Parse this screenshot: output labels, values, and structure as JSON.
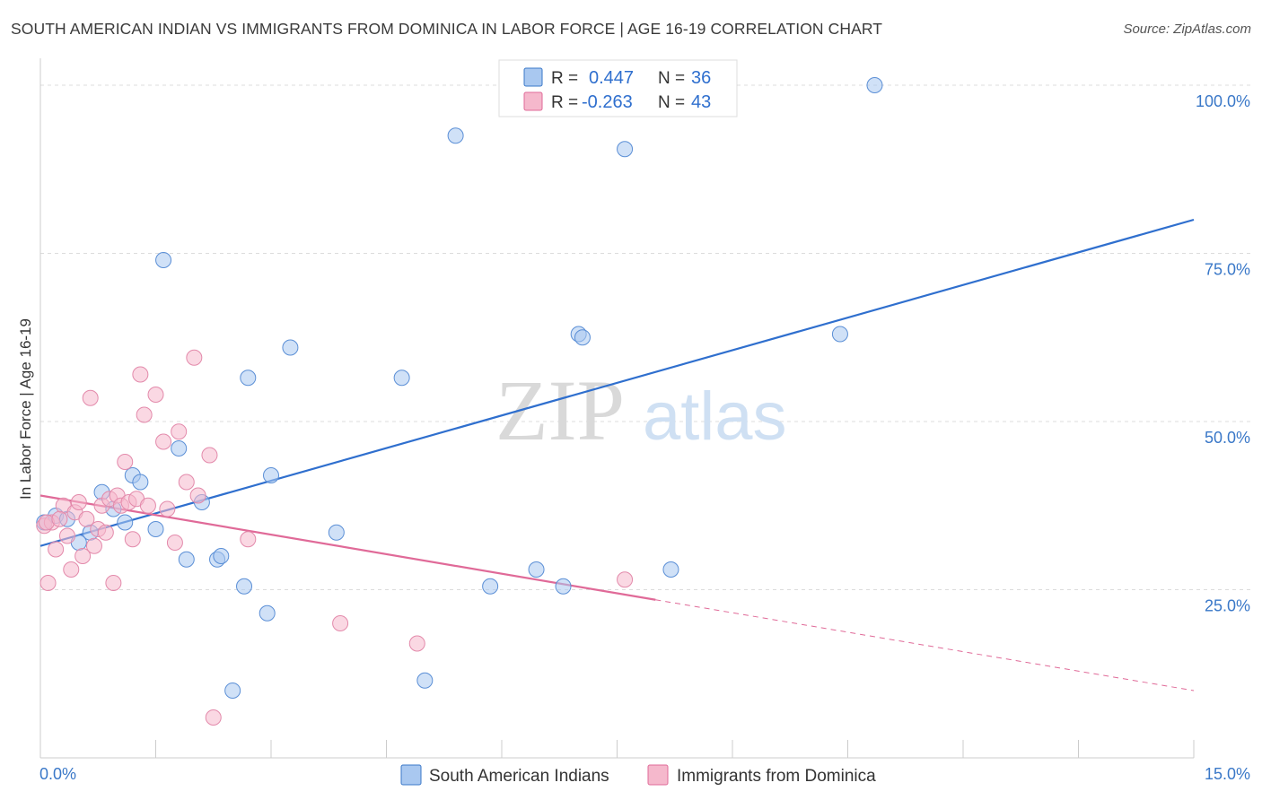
{
  "header": {
    "title": "SOUTH AMERICAN INDIAN VS IMMIGRANTS FROM DOMINICA IN LABOR FORCE | AGE 16-19 CORRELATION CHART",
    "source": "Source: ZipAtlas.com"
  },
  "watermark": {
    "zip": "ZIP",
    "atlas": "atlas"
  },
  "chart_data": {
    "type": "scatter",
    "title": "SOUTH AMERICAN INDIAN VS IMMIGRANTS FROM DOMINICA IN LABOR FORCE | AGE 16-19 CORRELATION CHART",
    "xlabel": "",
    "ylabel": "In Labor Force | Age 16-19",
    "xlim": [
      0,
      15
    ],
    "ylim": [
      0,
      102
    ],
    "x_tick_labels": [
      "0.0%",
      "15.0%"
    ],
    "y_ticks": [
      25,
      50,
      75,
      100
    ],
    "y_tick_labels": [
      "25.0%",
      "50.0%",
      "75.0%",
      "100.0%"
    ],
    "grid": true,
    "legend_position": "top-center",
    "colors": {
      "blue": "#3a78c8",
      "blue_fill": "#a9c8f0",
      "pink": "#e06a98",
      "pink_fill": "#f5b8cc"
    },
    "legend": [
      {
        "r_label": "R =",
        "r_value": "0.447",
        "n_label": "N =",
        "n_value": "36"
      },
      {
        "r_label": "R =",
        "r_value": "-0.263",
        "n_label": "N =",
        "n_value": "43"
      }
    ],
    "series": [
      {
        "name": "South American Indians",
        "color": "#3a78c8",
        "points": [
          [
            0.05,
            35
          ],
          [
            0.2,
            36
          ],
          [
            0.35,
            35.5
          ],
          [
            0.5,
            32
          ],
          [
            0.65,
            33.5
          ],
          [
            0.8,
            39.5
          ],
          [
            0.95,
            37
          ],
          [
            1.1,
            35
          ],
          [
            1.2,
            42
          ],
          [
            1.3,
            41
          ],
          [
            1.5,
            34
          ],
          [
            1.6,
            74
          ],
          [
            1.8,
            46
          ],
          [
            1.9,
            29.5
          ],
          [
            2.1,
            38
          ],
          [
            2.3,
            29.5
          ],
          [
            2.35,
            30
          ],
          [
            2.5,
            10
          ],
          [
            2.65,
            25.5
          ],
          [
            2.7,
            56.5
          ],
          [
            2.95,
            21.5
          ],
          [
            3.0,
            42
          ],
          [
            3.25,
            61
          ],
          [
            3.85,
            33.5
          ],
          [
            4.7,
            56.5
          ],
          [
            5.0,
            11.5
          ],
          [
            5.4,
            92.5
          ],
          [
            5.85,
            25.5
          ],
          [
            6.45,
            28
          ],
          [
            6.8,
            25.5
          ],
          [
            7.0,
            63
          ],
          [
            7.05,
            62.5
          ],
          [
            7.6,
            90.5
          ],
          [
            8.2,
            28
          ],
          [
            10.4,
            63
          ],
          [
            10.85,
            100
          ]
        ],
        "trend": {
          "x0": 0,
          "y0": 31.5,
          "x1": 15,
          "y1": 80
        }
      },
      {
        "name": "Immigrants from Dominica",
        "color": "#e06a98",
        "points": [
          [
            0.05,
            34.5
          ],
          [
            0.1,
            26
          ],
          [
            0.15,
            35
          ],
          [
            0.2,
            31
          ],
          [
            0.3,
            37.5
          ],
          [
            0.35,
            33
          ],
          [
            0.4,
            28
          ],
          [
            0.45,
            36.5
          ],
          [
            0.5,
            38
          ],
          [
            0.55,
            30
          ],
          [
            0.6,
            35.5
          ],
          [
            0.65,
            53.5
          ],
          [
            0.7,
            31.5
          ],
          [
            0.75,
            34
          ],
          [
            0.8,
            37.5
          ],
          [
            0.85,
            33.5
          ],
          [
            0.9,
            38.5
          ],
          [
            0.95,
            26
          ],
          [
            1.0,
            39
          ],
          [
            1.05,
            37.5
          ],
          [
            1.1,
            44
          ],
          [
            1.15,
            38
          ],
          [
            1.2,
            32.5
          ],
          [
            1.25,
            38.5
          ],
          [
            1.3,
            57
          ],
          [
            1.35,
            51
          ],
          [
            1.4,
            37.5
          ],
          [
            1.5,
            54
          ],
          [
            1.6,
            47
          ],
          [
            1.65,
            37
          ],
          [
            1.75,
            32
          ],
          [
            1.8,
            48.5
          ],
          [
            1.9,
            41
          ],
          [
            2.0,
            59.5
          ],
          [
            2.05,
            39
          ],
          [
            2.2,
            45
          ],
          [
            2.25,
            6
          ],
          [
            2.7,
            32.5
          ],
          [
            3.9,
            20
          ],
          [
            4.9,
            17
          ],
          [
            7.6,
            26.5
          ],
          [
            0.08,
            35
          ],
          [
            0.25,
            35.5
          ]
        ],
        "trend_solid": {
          "x0": 0,
          "y0": 39,
          "x1": 8,
          "y1": 23.5
        },
        "trend_dashed": {
          "x0": 8,
          "y0": 23.5,
          "x1": 15,
          "y1": 10
        }
      }
    ]
  }
}
